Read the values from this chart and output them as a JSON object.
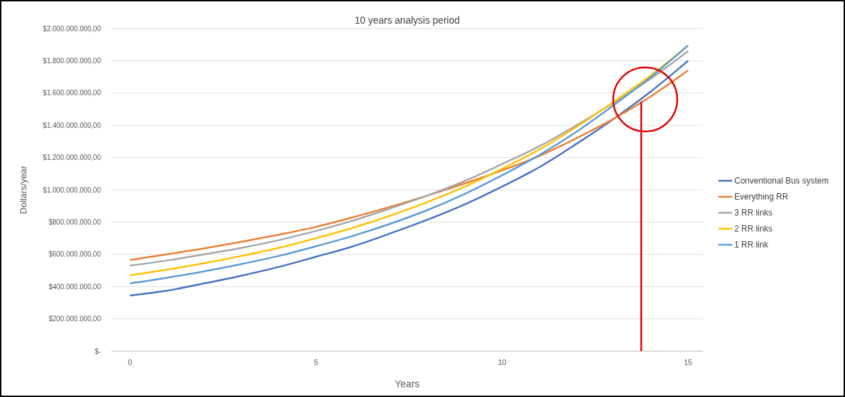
{
  "chart_data": {
    "type": "line",
    "title": "10 years analysis period",
    "xlabel": "Years",
    "ylabel": "Dollars/year",
    "x": [
      0,
      1,
      2,
      3,
      4,
      5,
      6,
      7,
      8,
      9,
      10,
      11,
      12,
      13,
      14,
      15
    ],
    "xlim": [
      -0.5,
      15.4
    ],
    "xticks": [
      0,
      5,
      10,
      15
    ],
    "ylim": [
      0,
      2000000000
    ],
    "yticks": [
      {
        "value": 0,
        "label": "$-"
      },
      {
        "value": 200000000,
        "label": "$200.000.000,00"
      },
      {
        "value": 400000000,
        "label": "$400.000.000,00"
      },
      {
        "value": 600000000,
        "label": "$600.000.000,00"
      },
      {
        "value": 800000000,
        "label": "$800.000.000,00"
      },
      {
        "value": 1000000000,
        "label": "$1.000.000.000,00"
      },
      {
        "value": 1200000000,
        "label": "$1.200.000.000,00"
      },
      {
        "value": 1400000000,
        "label": "$1.400.000.000,00"
      },
      {
        "value": 1600000000,
        "label": "$1.600.000.000,00"
      },
      {
        "value": 1800000000,
        "label": "$1.800.000.000,00"
      },
      {
        "value": 2000000000,
        "label": "$2.000.000.000,00"
      }
    ],
    "ref_lines": [
      {
        "axis": "x",
        "value": 13.74,
        "color": "#e00000"
      }
    ],
    "grid": "y",
    "legend": "right",
    "marker": "none",
    "line_style": "solid",
    "series": [
      {
        "name": "Conventional Bus system",
        "color": "#4472c4",
        "values": [
          345000000,
          375000000,
          420000000,
          468000000,
          522000000,
          585000000,
          650000000,
          730000000,
          815000000,
          910000000,
          1020000000,
          1140000000,
          1285000000,
          1440000000,
          1610000000,
          1800000000
        ]
      },
      {
        "name": "Everything RR",
        "color": "#ed7d31",
        "values": [
          565000000,
          600000000,
          637000000,
          678000000,
          722000000,
          770000000,
          830000000,
          895000000,
          965000000,
          1040000000,
          1120000000,
          1210000000,
          1320000000,
          1440000000,
          1580000000,
          1740000000
        ]
      },
      {
        "name": "3 RR links",
        "color": "#a5a5a5",
        "values": [
          530000000,
          562000000,
          600000000,
          640000000,
          688000000,
          745000000,
          810000000,
          885000000,
          965000000,
          1055000000,
          1160000000,
          1270000000,
          1400000000,
          1540000000,
          1690000000,
          1860000000
        ]
      },
      {
        "name": "2 RR links",
        "color": "#ffc000",
        "values": [
          470000000,
          505000000,
          545000000,
          590000000,
          640000000,
          700000000,
          765000000,
          840000000,
          925000000,
          1020000000,
          1130000000,
          1250000000,
          1390000000,
          1545000000,
          1710000000,
          1895000000
        ]
      },
      {
        "name": "1 RR link",
        "color": "#5b9bd5",
        "values": [
          420000000,
          455000000,
          495000000,
          540000000,
          590000000,
          650000000,
          715000000,
          790000000,
          875000000,
          975000000,
          1090000000,
          1215000000,
          1360000000,
          1525000000,
          1700000000,
          1895000000
        ]
      }
    ]
  }
}
